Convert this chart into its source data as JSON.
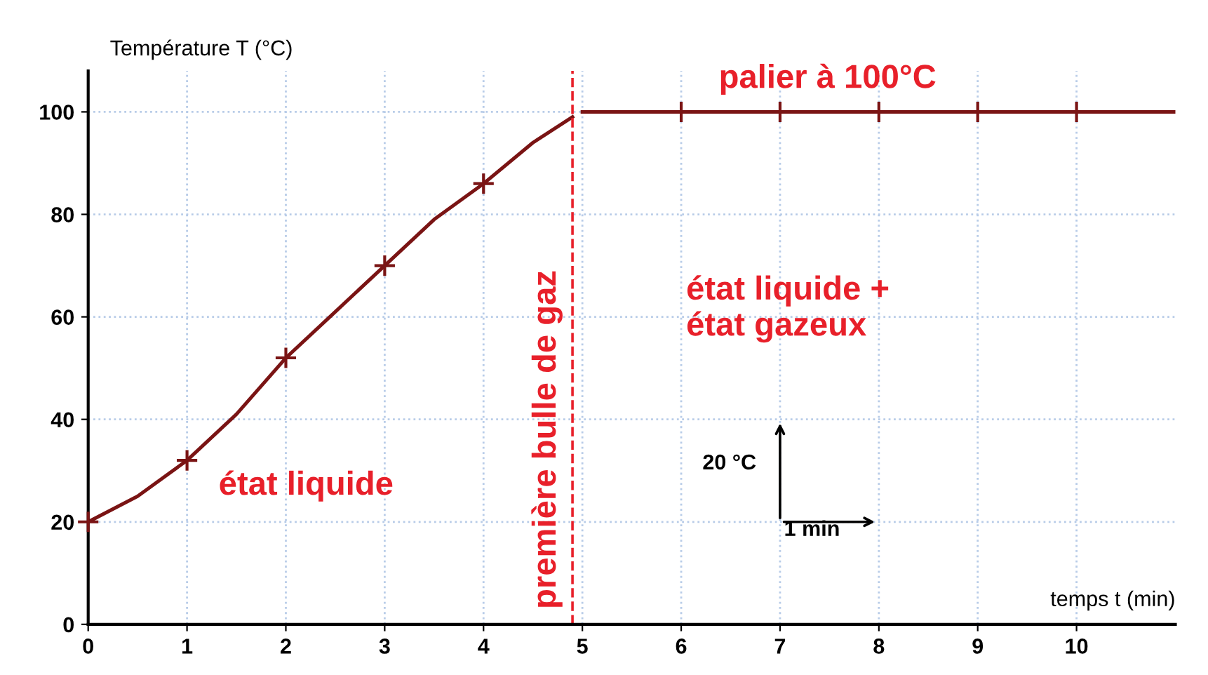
{
  "chart_data": {
    "type": "line",
    "ylabel": "Température T (°C)",
    "xlabel": "temps t (min)",
    "xlim": [
      0,
      11
    ],
    "ylim": [
      0,
      108
    ],
    "xticks": [
      0,
      1,
      2,
      3,
      4,
      5,
      6,
      7,
      8,
      9,
      10
    ],
    "yticks": [
      0,
      20,
      40,
      60,
      80,
      100
    ],
    "grid": true,
    "series": [
      {
        "color": "#7a1414",
        "marker": "none",
        "line_style": "solid",
        "x": [
          0,
          0.5,
          1,
          1.5,
          2,
          2.5,
          3,
          3.5,
          4,
          4.5,
          4.9
        ],
        "values": [
          20,
          25,
          32,
          41,
          52,
          61,
          70,
          79,
          86,
          94,
          99
        ]
      },
      {
        "color": "#7a1414",
        "marker": "none",
        "line_style": "solid",
        "x": [
          5,
          11
        ],
        "values": [
          100,
          100
        ]
      },
      {
        "type": "scatter",
        "color": "#7a1414",
        "marker": "cross",
        "x": [
          0,
          1,
          2,
          3,
          4,
          6,
          7,
          8,
          9,
          10
        ],
        "values": [
          20,
          32,
          52,
          70,
          86,
          100,
          100,
          100,
          100,
          100
        ]
      }
    ],
    "ref_lines": [
      {
        "axis": "x",
        "value": 4.9,
        "label": "première bulle de gaz",
        "color": "#e8202a",
        "line_style": "dashed"
      }
    ],
    "annotations": [
      "palier à 100°C",
      "état liquide",
      "état liquide +\nétat gazeux",
      "20 °C",
      "1 min"
    ]
  }
}
